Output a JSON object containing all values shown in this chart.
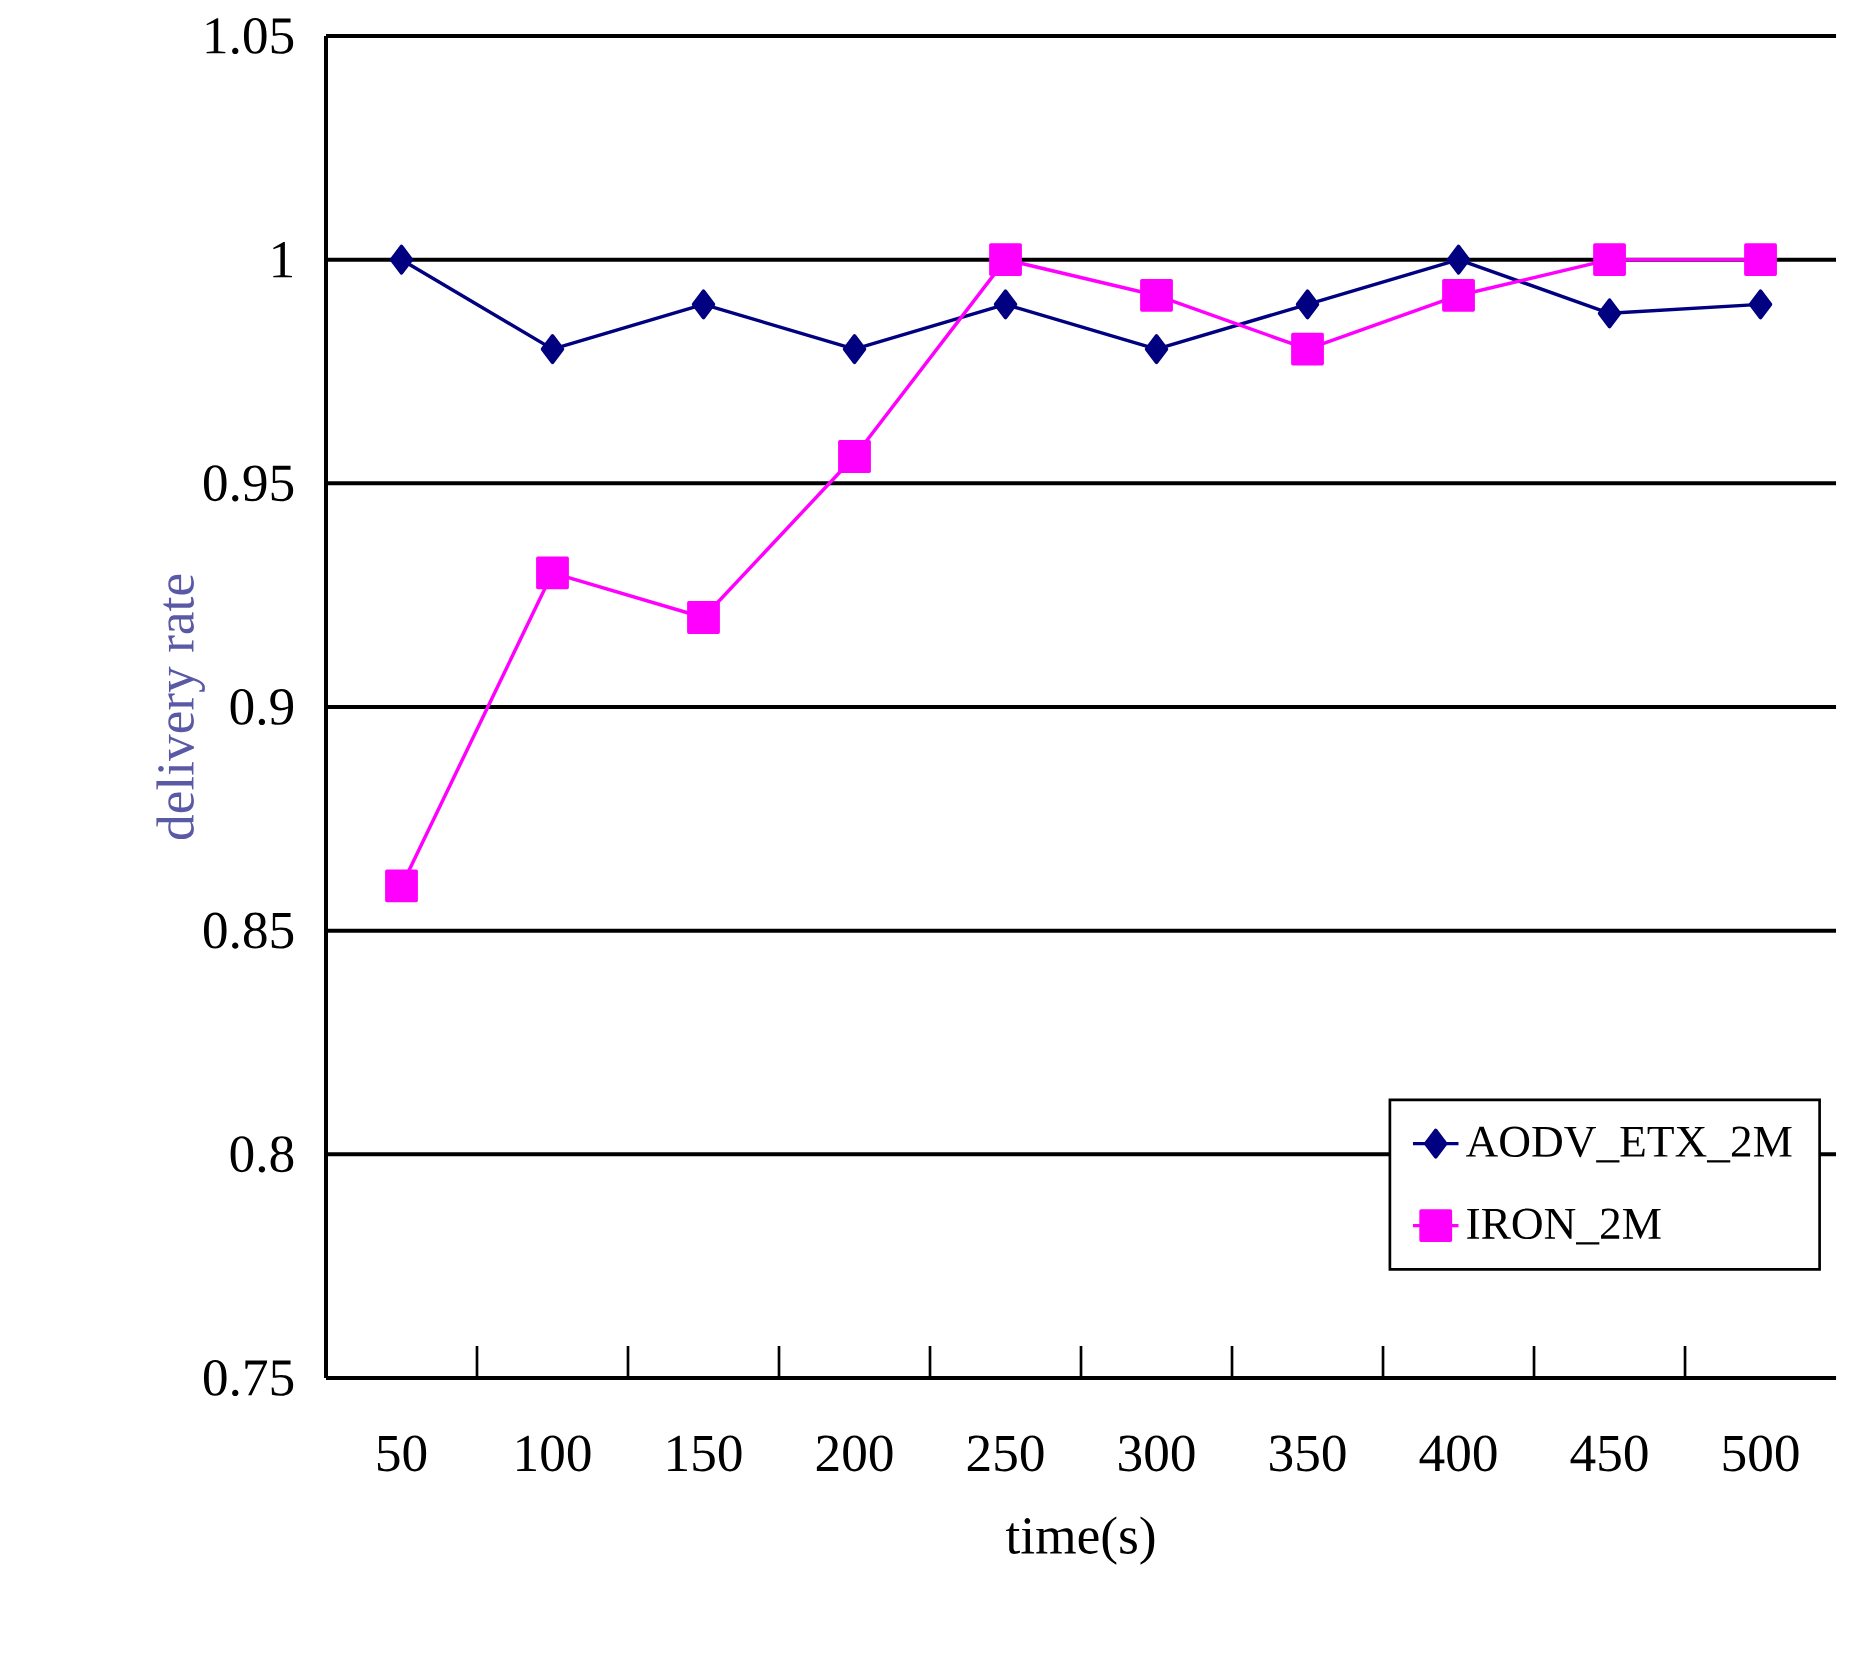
{
  "chart_data": {
    "type": "line",
    "xlabel": "time(s)",
    "ylabel": "delivery rate",
    "categories": [
      "50",
      "100",
      "150",
      "200",
      "250",
      "300",
      "350",
      "400",
      "450",
      "500"
    ],
    "series": [
      {
        "name": "AODV_ETX_2M",
        "color": "#000080",
        "marker": "diamond",
        "values": [
          1.0,
          0.98,
          0.99,
          0.98,
          0.99,
          0.98,
          0.99,
          1.0,
          0.988,
          0.99
        ]
      },
      {
        "name": "IRON_2M",
        "color": "#ff00ff",
        "marker": "square",
        "values": [
          0.86,
          0.93,
          0.92,
          0.956,
          1.0,
          0.992,
          0.98,
          0.992,
          1.0,
          1.0
        ]
      }
    ],
    "ylim": [
      0.75,
      1.05
    ],
    "yticks": [
      0.75,
      0.8,
      0.85,
      0.9,
      0.95,
      1,
      1.05
    ],
    "grid": "y",
    "legend": "bottom right"
  }
}
